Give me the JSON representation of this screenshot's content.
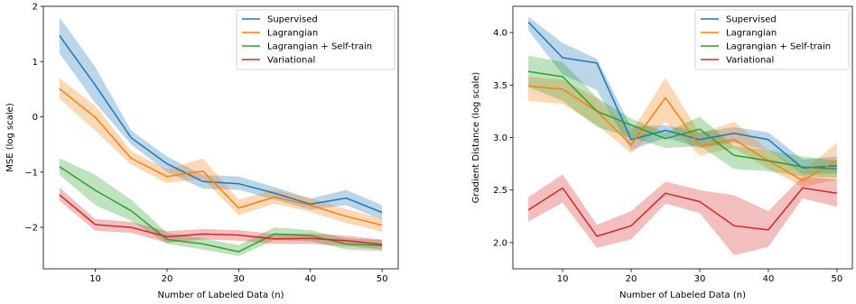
{
  "chart_data": [
    {
      "type": "line",
      "title": "",
      "xlabel": "Number of Labeled Data (n)",
      "ylabel": "MSE (log scale)",
      "x": [
        5,
        10,
        15,
        20,
        25,
        30,
        35,
        40,
        45,
        50
      ],
      "xlim": [
        2.75,
        52.25
      ],
      "ylim": [
        -2.75,
        2.0
      ],
      "xticks": [
        10,
        20,
        30,
        40,
        50
      ],
      "yticks": [
        -2,
        -1,
        0,
        1,
        2
      ],
      "xtick_labels": [
        "10",
        "20",
        "30",
        "40",
        "50"
      ],
      "ytick_labels": [
        "−2",
        "−1",
        "0",
        "1",
        "2"
      ],
      "grid": false,
      "legend_position": "top-right",
      "series": [
        {
          "name": "Supervised",
          "color": "#1f77b4",
          "values": [
            1.47,
            0.57,
            -0.38,
            -0.85,
            -1.17,
            -1.21,
            -1.38,
            -1.58,
            -1.47,
            -1.73
          ],
          "lower": [
            1.15,
            0.25,
            -0.5,
            -1.0,
            -1.3,
            -1.32,
            -1.5,
            -1.68,
            -1.6,
            -1.86
          ],
          "upper": [
            1.8,
            0.9,
            -0.25,
            -0.72,
            -1.05,
            -1.08,
            -1.27,
            -1.48,
            -1.32,
            -1.6
          ]
        },
        {
          "name": "Lagrangian",
          "color": "#ff7f0e",
          "values": [
            0.51,
            -0.01,
            -0.75,
            -1.08,
            -0.98,
            -1.65,
            -1.45,
            -1.6,
            -1.8,
            -1.96
          ],
          "lower": [
            0.33,
            -0.25,
            -0.87,
            -1.2,
            -1.12,
            -1.78,
            -1.57,
            -1.72,
            -1.92,
            -2.08
          ],
          "upper": [
            0.7,
            0.2,
            -0.62,
            -0.95,
            -0.75,
            -1.5,
            -1.32,
            -1.47,
            -1.67,
            -1.84
          ]
        },
        {
          "name": "Lagrangian + Self-train",
          "color": "#2ca02c",
          "values": [
            -0.9,
            -1.33,
            -1.7,
            -2.22,
            -2.3,
            -2.44,
            -2.12,
            -2.15,
            -2.3,
            -2.33
          ],
          "lower": [
            -1.05,
            -1.6,
            -1.88,
            -2.3,
            -2.4,
            -2.52,
            -2.23,
            -2.25,
            -2.4,
            -2.43
          ],
          "upper": [
            -0.75,
            -1.05,
            -1.5,
            -2.1,
            -2.2,
            -2.32,
            -2.0,
            -2.05,
            -2.2,
            -2.23
          ]
        },
        {
          "name": "Variational",
          "color": "#d62728",
          "values": [
            -1.41,
            -1.95,
            -2.0,
            -2.17,
            -2.12,
            -2.14,
            -2.21,
            -2.2,
            -2.24,
            -2.31
          ],
          "lower": [
            -1.52,
            -2.06,
            -2.1,
            -2.28,
            -2.22,
            -2.24,
            -2.3,
            -2.3,
            -2.34,
            -2.4
          ],
          "upper": [
            -1.28,
            -1.85,
            -1.9,
            -2.07,
            -2.03,
            -2.05,
            -2.12,
            -2.11,
            -2.15,
            -2.22
          ]
        }
      ]
    },
    {
      "type": "line",
      "title": "",
      "xlabel": "Number of Labeled Data (n)",
      "ylabel": "Gradient Distance (log scale)",
      "x": [
        5,
        10,
        15,
        20,
        25,
        30,
        35,
        40,
        45,
        50
      ],
      "xlim": [
        2.75,
        52.25
      ],
      "ylim": [
        1.75,
        4.25
      ],
      "xticks": [
        10,
        20,
        30,
        40,
        50
      ],
      "yticks": [
        2.0,
        2.5,
        3.0,
        3.5,
        4.0
      ],
      "xtick_labels": [
        "10",
        "20",
        "30",
        "40",
        "50"
      ],
      "ytick_labels": [
        "2.0",
        "2.5",
        "3.0",
        "3.5",
        "4.0"
      ],
      "grid": false,
      "legend_position": "top-right",
      "series": [
        {
          "name": "Supervised",
          "color": "#1f77b4",
          "values": [
            4.1,
            3.76,
            3.71,
            2.98,
            3.07,
            2.98,
            3.04,
            2.98,
            2.71,
            2.73
          ],
          "lower": [
            4.02,
            3.6,
            3.45,
            2.88,
            3.0,
            2.9,
            2.95,
            2.88,
            2.65,
            2.66
          ],
          "upper": [
            4.15,
            3.9,
            3.75,
            3.1,
            3.12,
            3.05,
            3.1,
            3.05,
            2.79,
            2.82
          ]
        },
        {
          "name": "Lagrangian",
          "color": "#ff7f0e",
          "values": [
            3.49,
            3.46,
            3.25,
            2.93,
            3.38,
            2.92,
            2.98,
            2.78,
            2.59,
            2.78
          ],
          "lower": [
            3.35,
            3.32,
            3.12,
            2.85,
            3.15,
            2.83,
            2.9,
            2.7,
            2.53,
            2.6
          ],
          "upper": [
            3.58,
            3.55,
            3.38,
            3.05,
            3.57,
            3.04,
            3.15,
            2.88,
            2.68,
            2.95
          ]
        },
        {
          "name": "Lagrangian + Self-train",
          "color": "#2ca02c",
          "values": [
            3.63,
            3.58,
            3.25,
            3.12,
            2.99,
            3.08,
            2.83,
            2.78,
            2.72,
            2.7
          ],
          "lower": [
            3.48,
            3.35,
            3.1,
            3.0,
            2.9,
            2.92,
            2.7,
            2.68,
            2.63,
            2.62
          ],
          "upper": [
            3.78,
            3.72,
            3.38,
            3.18,
            3.05,
            3.2,
            2.92,
            2.88,
            2.82,
            2.78
          ]
        },
        {
          "name": "Variational",
          "color": "#d62728",
          "values": [
            2.31,
            2.52,
            2.06,
            2.16,
            2.47,
            2.39,
            2.16,
            2.12,
            2.52,
            2.47
          ],
          "lower": [
            2.2,
            2.38,
            1.95,
            2.03,
            2.37,
            2.28,
            1.88,
            1.96,
            2.42,
            2.34
          ],
          "upper": [
            2.43,
            2.65,
            2.17,
            2.3,
            2.58,
            2.5,
            2.45,
            2.3,
            2.63,
            2.6
          ]
        }
      ]
    }
  ]
}
